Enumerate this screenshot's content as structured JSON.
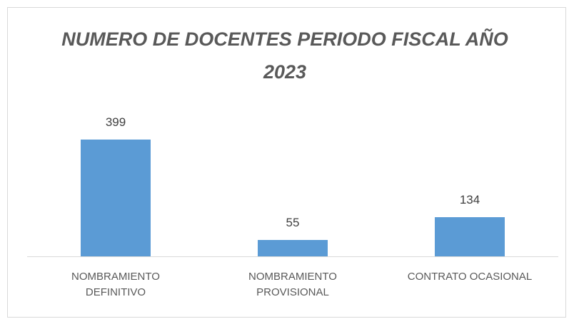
{
  "chart_data": {
    "type": "bar",
    "title": "NUMERO DE DOCENTES PERIODO FISCAL AÑO 2023",
    "categories": [
      "NOMBRAMIENTO DEFINITIVO",
      "NOMBRAMIENTO PROVISIONAL",
      "CONTRATO OCASIONAL"
    ],
    "values": [
      399,
      55,
      134
    ],
    "color": "#5b9bd5",
    "ylim": [
      0,
      450
    ],
    "data_labels": true
  }
}
